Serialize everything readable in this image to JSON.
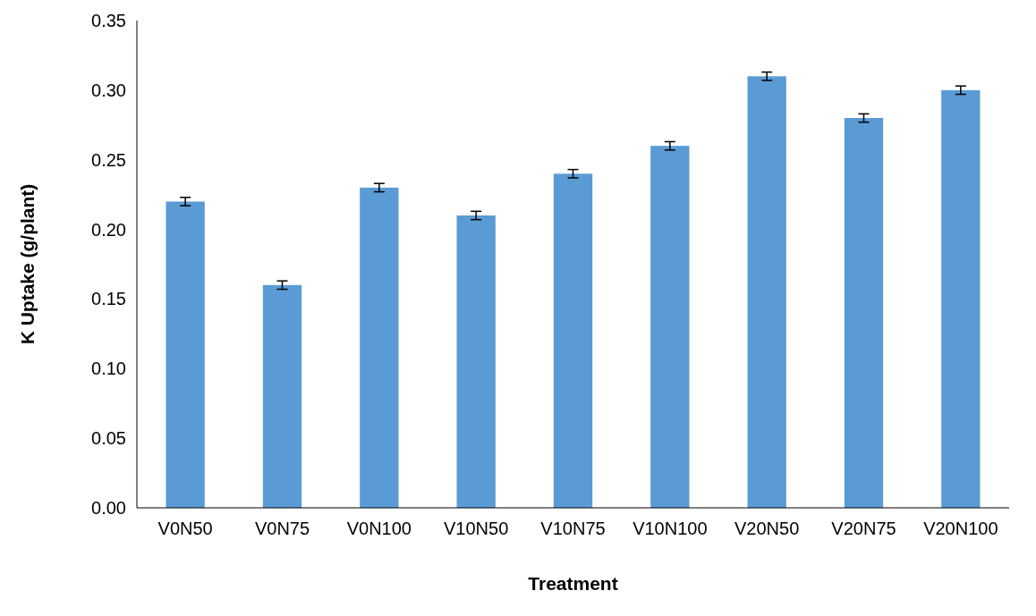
{
  "chart_data": {
    "type": "bar",
    "xlabel": "Treatment",
    "ylabel": "K Uptake (g/plant)",
    "categories": [
      "V0N50",
      "V0N75",
      "V0N100",
      "V10N50",
      "V10N75",
      "V10N100",
      "V20N50",
      "V20N75",
      "V20N100"
    ],
    "values": [
      0.22,
      0.16,
      0.23,
      0.21,
      0.24,
      0.26,
      0.31,
      0.28,
      0.3
    ],
    "errors": [
      0.003,
      0.003,
      0.003,
      0.003,
      0.003,
      0.003,
      0.003,
      0.003,
      0.003
    ],
    "color": "#5b9bd5",
    "ylim": [
      0,
      0.35
    ],
    "yticks": [
      {
        "value": 0,
        "label": "0.00"
      },
      {
        "value": 0.05,
        "label": "0.05"
      },
      {
        "value": 0.1,
        "label": "0.10"
      },
      {
        "value": 0.15,
        "label": "0.15"
      },
      {
        "value": 0.2,
        "label": "0.20"
      },
      {
        "value": 0.25,
        "label": "0.25"
      },
      {
        "value": 0.3,
        "label": "0.30"
      },
      {
        "value": 0.35,
        "label": "0.35"
      }
    ],
    "grid": false
  }
}
